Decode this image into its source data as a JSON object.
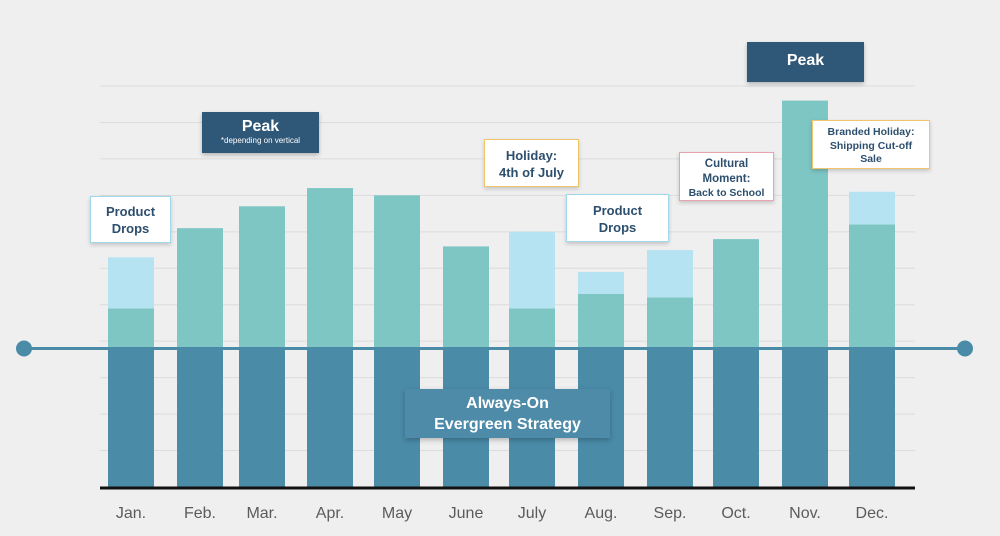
{
  "chart_data": {
    "type": "bar",
    "categories": [
      "Jan.",
      "Feb.",
      "Mar.",
      "Apr.",
      "May",
      "June",
      "July",
      "Aug.",
      "Sep.",
      "Oct.",
      "Nov.",
      "Dec."
    ],
    "ylim": [
      0,
      11
    ],
    "baseline_level": 3.8,
    "series": [
      {
        "values": [
          3.8,
          3.8,
          3.8,
          3.8,
          3.8,
          3.8,
          3.8,
          3.8,
          3.8,
          3.8,
          3.8,
          3.8
        ]
      },
      {
        "values": [
          1.1,
          3.3,
          3.9,
          4.4,
          4.2,
          2.8,
          1.1,
          1.5,
          1.4,
          3.0,
          6.8,
          3.4
        ]
      },
      {
        "values": [
          1.4,
          0,
          0,
          0,
          0,
          0,
          2.1,
          0.6,
          1.3,
          0,
          0,
          0.9
        ]
      }
    ],
    "colors": {
      "evergreen": "#4a8ba8",
      "mid": "#7dc6c4",
      "light": "#b6e3f1",
      "timeline": "#4a8ba8",
      "axis": "#111111",
      "grid": "#dcdcdc",
      "peak_box": "#2f5777",
      "callout_text": "#2d4f6e"
    }
  },
  "annotations": {
    "product_drops_1": {
      "line1": "Product",
      "line2": "Drops"
    },
    "peak_1": {
      "title": "Peak",
      "subtitle": "*depending on vertical"
    },
    "holiday_july": {
      "line1": "Holiday:",
      "line2": "4th of July"
    },
    "product_drops_2": {
      "line1": "Product",
      "line2": "Drops"
    },
    "cultural_moment": {
      "line1": "Cultural",
      "line2": "Moment:",
      "line3": "Back to School"
    },
    "peak_2": {
      "title": "Peak"
    },
    "branded_holiday": {
      "line1": "Branded Holiday:",
      "line2": "Shipping Cut-off",
      "line3": "Sale"
    },
    "evergreen": {
      "line1": "Always-On",
      "line2": "Evergreen Strategy"
    }
  }
}
